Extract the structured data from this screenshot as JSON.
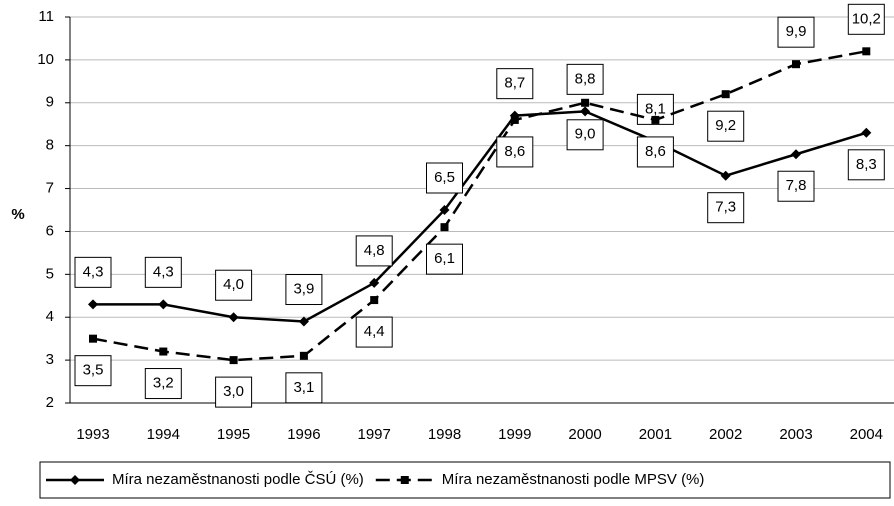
{
  "chart_data": {
    "type": "line",
    "y_label": "%",
    "categories": [
      "1993",
      "1994",
      "1995",
      "1996",
      "1997",
      "1998",
      "1999",
      "2000",
      "2001",
      "2002",
      "2003",
      "2004"
    ],
    "series": [
      {
        "name": "Míra nezaměstnanosti podle ČSÚ (%)",
        "color": "#000000",
        "marker": "diamond",
        "dashed": false,
        "values": [
          4.3,
          4.3,
          4.0,
          3.9,
          4.8,
          6.5,
          8.7,
          8.8,
          8.1,
          7.3,
          7.8,
          8.3
        ],
        "value_labels": [
          "4,3",
          "4,3",
          "4,0",
          "3,9",
          "4,8",
          "6,5",
          "8,7",
          "8,8",
          "8,1",
          "7,3",
          "7,8",
          "8,3"
        ]
      },
      {
        "name": "Míra nezaměstnanosti podle MPSV (%)",
        "color": "#000000",
        "marker": "square",
        "dashed": true,
        "values": [
          3.5,
          3.2,
          3.0,
          3.1,
          4.4,
          6.1,
          8.6,
          9.0,
          8.6,
          9.2,
          9.9,
          10.2
        ],
        "value_labels": [
          "3,5",
          "3,2",
          "3,0",
          "3,1",
          "4,4",
          "6,1",
          "8,6",
          "9,0",
          "8,6",
          "9,2",
          "9,9",
          "10,2"
        ]
      }
    ],
    "ylim": [
      2,
      11
    ],
    "yticks": [
      2,
      3,
      4,
      5,
      6,
      7,
      8,
      9,
      10,
      11
    ],
    "grid": true
  }
}
